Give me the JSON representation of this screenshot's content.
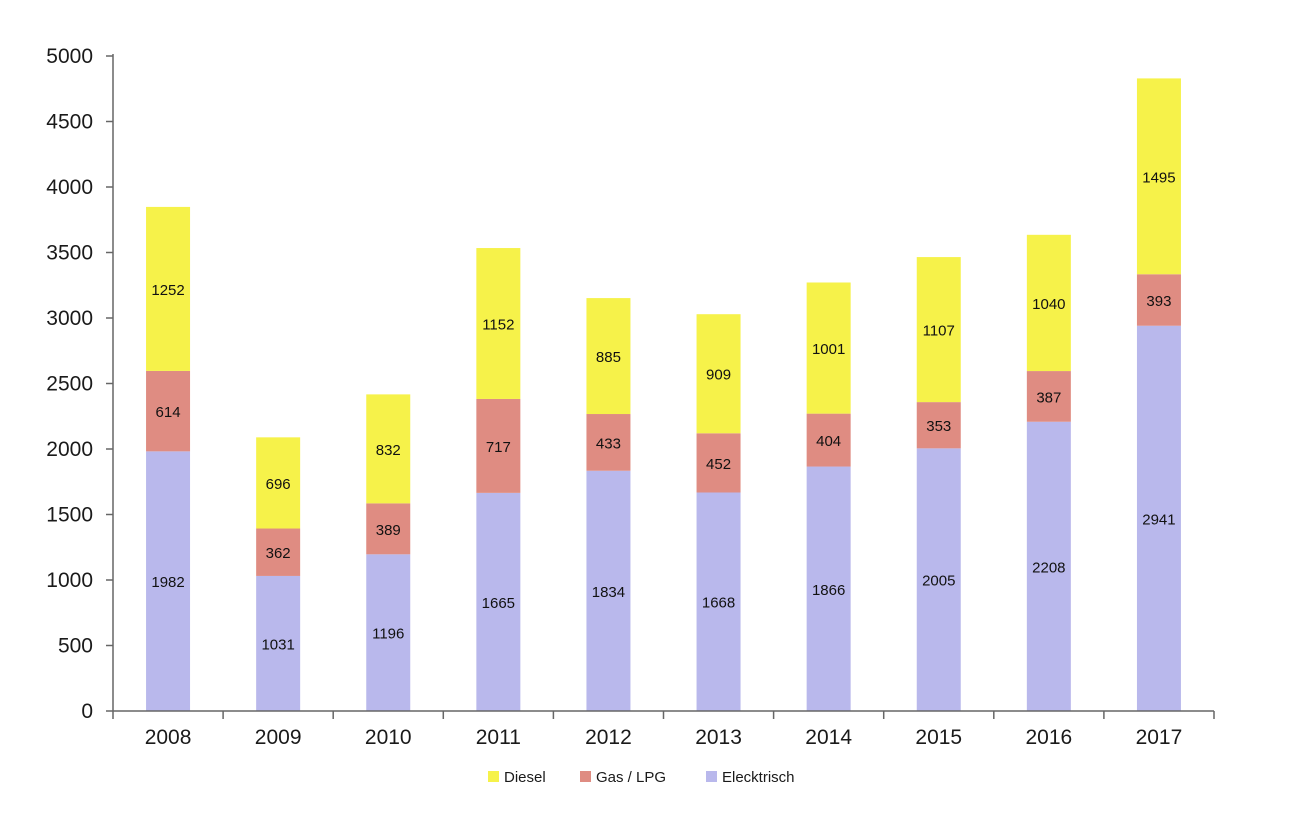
{
  "chart_data": {
    "type": "bar",
    "stacked": true,
    "title": "",
    "xlabel": "",
    "ylabel": "",
    "categories": [
      "2008",
      "2009",
      "2010",
      "2011",
      "2012",
      "2013",
      "2014",
      "2015",
      "2016",
      "2017"
    ],
    "series": [
      {
        "name": "Elecktrisch",
        "color": "#b9b8ec",
        "values": [
          1982,
          1031,
          1196,
          1665,
          1834,
          1668,
          1866,
          2005,
          2208,
          2941
        ]
      },
      {
        "name": "Gas / LPG",
        "color": "#df8c82",
        "values": [
          614,
          362,
          389,
          717,
          433,
          452,
          404,
          353,
          387,
          393
        ]
      },
      {
        "name": "Diesel",
        "color": "#f6f24a",
        "values": [
          1252,
          696,
          832,
          1152,
          885,
          909,
          1001,
          1107,
          1040,
          1495
        ]
      }
    ],
    "ylim": [
      0,
      5000
    ],
    "yticks": [
      0,
      500,
      1000,
      1500,
      2000,
      2500,
      3000,
      3500,
      4000,
      4500,
      5000
    ],
    "grid": false,
    "legend": {
      "placement": "bottom-center",
      "order": [
        "Diesel",
        "Gas / LPG",
        "Elecktrisch"
      ]
    }
  }
}
